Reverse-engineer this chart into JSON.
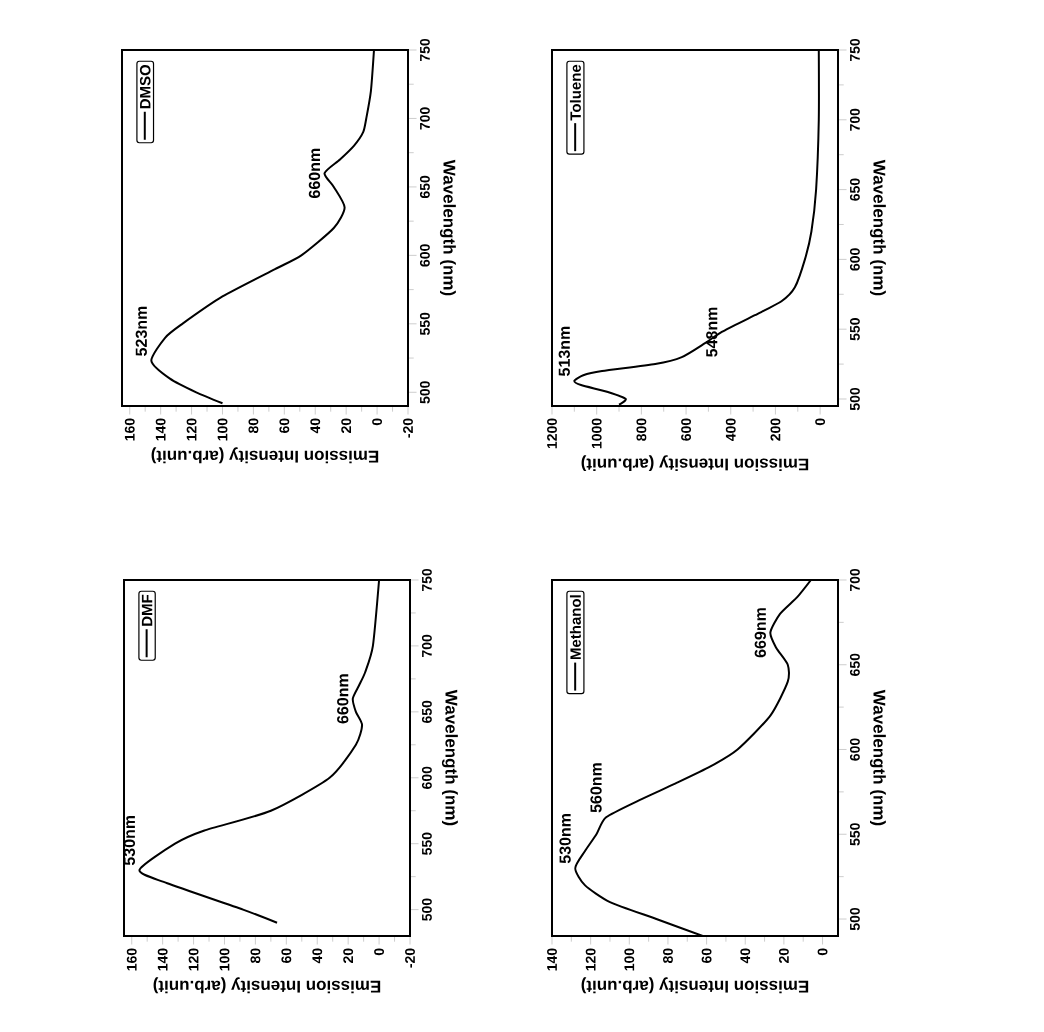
{
  "chart_data": [
    {
      "type": "line",
      "xlabel": "Emission Intensity (arb.unit)",
      "ylabel": "Wavelength (nm)",
      "xlim": [
        165,
        -20
      ],
      "xticks": [
        160,
        140,
        120,
        100,
        80,
        60,
        40,
        20,
        0,
        -20
      ],
      "ylim": [
        490,
        750
      ],
      "yticks": [
        500,
        550,
        600,
        650,
        700,
        750
      ],
      "legend": "top left",
      "series": [
        {
          "name": "DMSO",
          "color": "#000000",
          "x": [
            100,
            117,
            134,
            146,
            137,
            126,
            100,
            66,
            49,
            28,
            21,
            28,
            34,
            24,
            15,
            9,
            7,
            4,
            2
          ],
          "values": [
            492,
            500,
            510,
            523,
            540,
            550,
            570,
            590,
            600,
            620,
            635,
            650,
            660,
            670,
            680,
            690,
            700,
            720,
            750
          ]
        }
      ],
      "annotations": [
        {
          "text": "523nm",
          "x": 146,
          "y": 523
        },
        {
          "text": "660nm",
          "x": 34,
          "y": 660
        }
      ]
    },
    {
      "type": "line",
      "xlabel": "Emission Intensity (arb.unit)",
      "ylabel": "Wavelength (nm)",
      "xlim": [
        1200,
        -80
      ],
      "xticks": [
        1200,
        1000,
        800,
        600,
        400,
        200,
        0
      ],
      "ylim": [
        495,
        750
      ],
      "yticks": [
        500,
        550,
        600,
        650,
        700,
        750
      ],
      "legend": "top left",
      "series": [
        {
          "name": "Toluene",
          "color": "#000000",
          "x": [
            900,
            870,
            950,
            1070,
            1100,
            1060,
            976,
            738,
            619,
            515,
            440,
            292,
            173,
            113,
            68,
            39,
            18,
            6,
            6
          ],
          "values": [
            496,
            500,
            505,
            510,
            513,
            517,
            520,
            525,
            530,
            540,
            548,
            560,
            570,
            580,
            600,
            620,
            650,
            700,
            750
          ]
        }
      ],
      "annotations": [
        {
          "text": "513nm",
          "x": 1100,
          "y": 513
        },
        {
          "text": "548nm",
          "x": 440,
          "y": 548
        }
      ]
    },
    {
      "type": "line",
      "xlabel": "Emission Intensity (arb.unit)",
      "ylabel": "Wavelength (nm)",
      "xlim": [
        165,
        -20
      ],
      "xticks": [
        160,
        140,
        120,
        100,
        80,
        60,
        40,
        20,
        0,
        -20
      ],
      "ylim": [
        480,
        750
      ],
      "yticks": [
        500,
        550,
        600,
        650,
        700,
        750
      ],
      "legend": "top left",
      "series": [
        {
          "name": "DMF",
          "color": "#000000",
          "x": [
            66,
            88,
            137,
            155,
            132,
            113,
            70,
            32,
            15,
            11,
            15,
            17,
            13,
            9,
            4,
            0
          ],
          "values": [
            490,
            500,
            520,
            530,
            550,
            560,
            575,
            600,
            625,
            640,
            650,
            660,
            670,
            680,
            700,
            750
          ]
        }
      ],
      "annotations": [
        {
          "text": "530nm",
          "x": 155,
          "y": 530
        },
        {
          "text": "660nm",
          "x": 17,
          "y": 660
        }
      ]
    },
    {
      "type": "line",
      "xlabel": "Emission Intensity (arb.unit)",
      "ylabel": "Wavelength (nm)",
      "xlim": [
        140,
        -8
      ],
      "xticks": [
        140,
        120,
        100,
        80,
        60,
        40,
        20,
        0
      ],
      "ylim": [
        490,
        700
      ],
      "yticks": [
        500,
        550,
        600,
        650,
        700
      ],
      "legend": "top left",
      "series": [
        {
          "name": "Methanol",
          "color": "#000000",
          "x": [
            62,
            86,
            110,
            123,
            128,
            123,
            117,
            112,
            95,
            76,
            58,
            44,
            27,
            18,
            18,
            24,
            27,
            22,
            13,
            6
          ],
          "values": [
            490,
            500,
            510,
            520,
            530,
            540,
            550,
            560,
            570,
            580,
            590,
            600,
            620,
            640,
            650,
            660,
            669,
            680,
            690,
            700
          ]
        }
      ],
      "annotations": [
        {
          "text": "530nm",
          "x": 128,
          "y": 530
        },
        {
          "text": "560nm",
          "x": 112,
          "y": 560
        },
        {
          "text": "669nm",
          "x": 27,
          "y": 669
        }
      ]
    }
  ]
}
